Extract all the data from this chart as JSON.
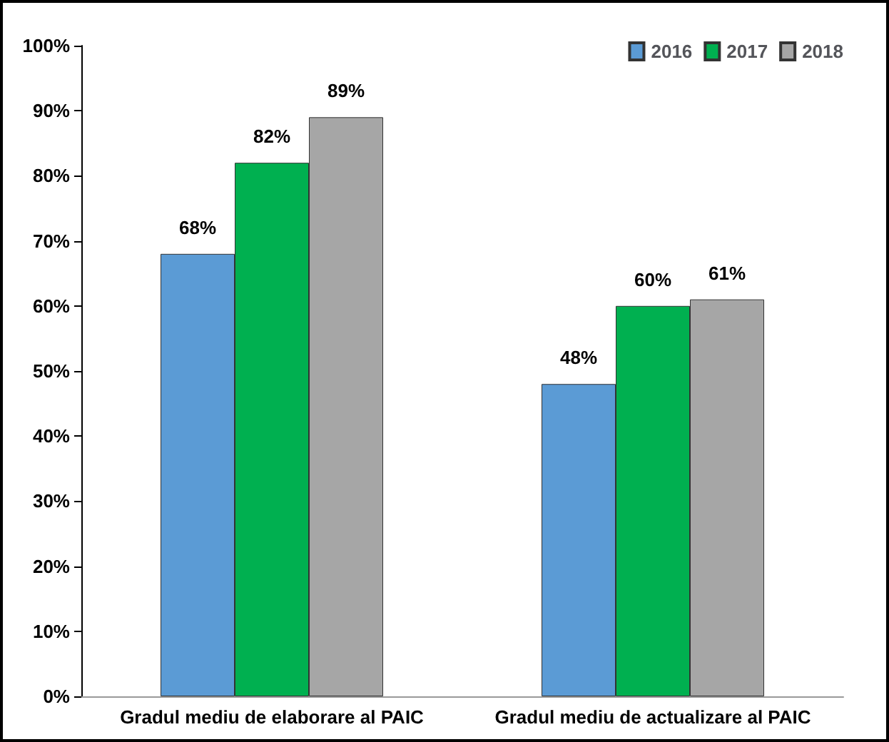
{
  "chart_data": {
    "type": "bar",
    "categories": [
      "Gradul mediu de elaborare al PAIC",
      "Gradul mediu de actualizare al PAIC"
    ],
    "series": [
      {
        "name": "2016",
        "color": "#5b9bd5",
        "values": [
          68,
          48
        ],
        "value_labels": [
          "68%",
          "48%"
        ]
      },
      {
        "name": "2017",
        "color": "#00b050",
        "values": [
          82,
          60
        ],
        "value_labels": [
          "82%",
          "60%"
        ]
      },
      {
        "name": "2018",
        "color": "#a6a6a6",
        "values": [
          89,
          61
        ],
        "value_labels": [
          "89%",
          "61%"
        ]
      }
    ],
    "ylim": [
      0,
      100
    ],
    "yticks": [
      {
        "value": 0,
        "label": "0%"
      },
      {
        "value": 10,
        "label": "10%"
      },
      {
        "value": 20,
        "label": "20%"
      },
      {
        "value": 30,
        "label": "30%"
      },
      {
        "value": 40,
        "label": "40%"
      },
      {
        "value": 50,
        "label": "50%"
      },
      {
        "value": 60,
        "label": "60%"
      },
      {
        "value": 70,
        "label": "70%"
      },
      {
        "value": 80,
        "label": "80%"
      },
      {
        "value": 90,
        "label": "90%"
      },
      {
        "value": 100,
        "label": "100%"
      }
    ],
    "grid": false,
    "legend": "top right"
  }
}
